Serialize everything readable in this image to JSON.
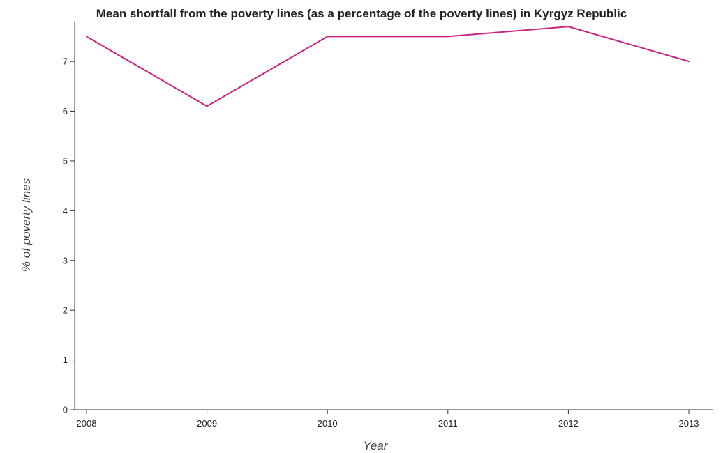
{
  "chart_data": {
    "type": "line",
    "title": "Mean shortfall from the poverty lines (as a percentage of the poverty lines) in Kyrgyz Republic",
    "xlabel": "Year",
    "ylabel": "% of poverty lines",
    "categories": [
      "2008",
      "2009",
      "2010",
      "2011",
      "2012",
      "2013"
    ],
    "series": [
      {
        "values": [
          7.5,
          6.1,
          7.5,
          7.5,
          7.7,
          7.0
        ],
        "color": "#c8247f"
      }
    ],
    "yticks": [
      0,
      1,
      2,
      3,
      4,
      5,
      6,
      7
    ],
    "ylim": [
      0,
      7.8
    ],
    "grid": false,
    "legend": "none"
  }
}
